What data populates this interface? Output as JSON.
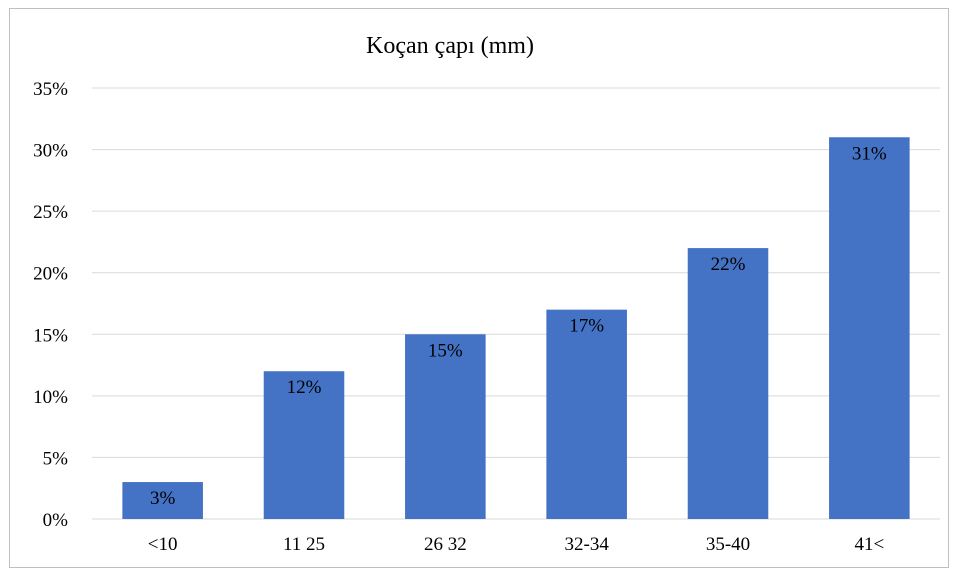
{
  "chart_data": {
    "type": "bar",
    "title": "Koçan çapı (mm)",
    "xlabel": "",
    "ylabel": "",
    "categories": [
      "<10",
      "11 25",
      "26 32",
      "32-34",
      "35-40",
      "41<"
    ],
    "values": [
      3,
      12,
      15,
      17,
      22,
      31
    ],
    "data_labels": [
      "3%",
      "12%",
      "15%",
      "17%",
      "22%",
      "31%"
    ],
    "ylim": [
      0,
      35
    ],
    "yticks": [
      0,
      5,
      10,
      15,
      20,
      25,
      30,
      35
    ],
    "ytick_labels": [
      "0%",
      "5%",
      "10%",
      "15%",
      "20%",
      "25%",
      "30%",
      "35%"
    ],
    "grid": true,
    "legend": "none",
    "bar_color": "#4472c4"
  }
}
